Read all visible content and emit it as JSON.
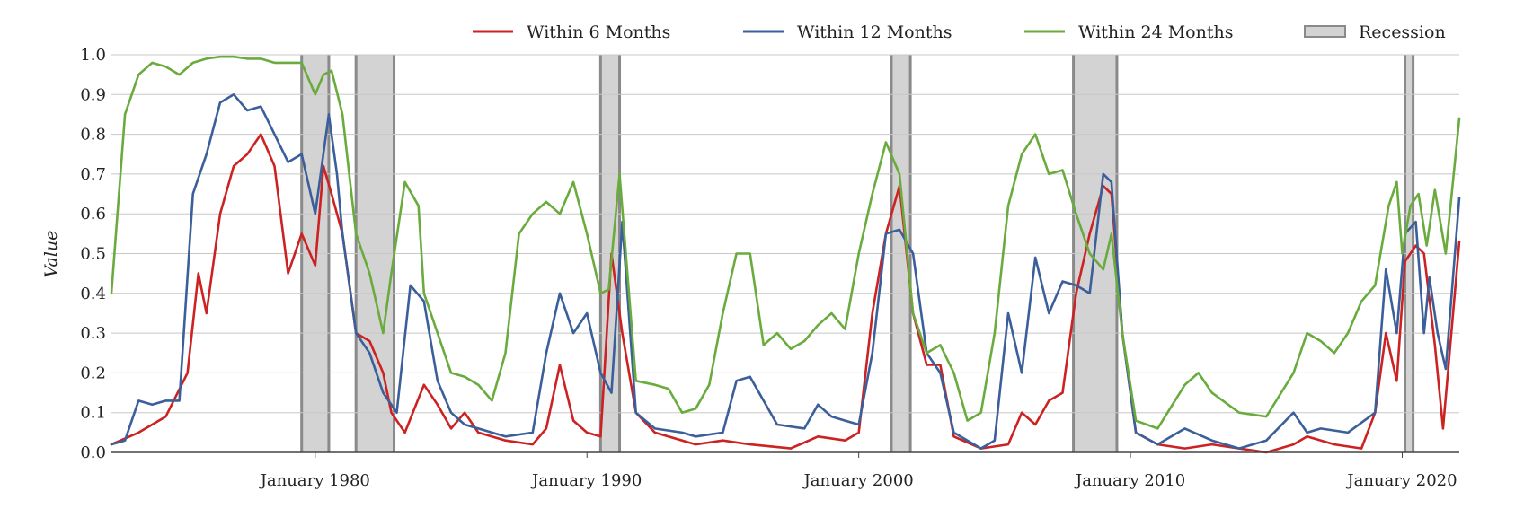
{
  "chart_data": {
    "type": "line",
    "title": "",
    "xlabel": "",
    "ylabel": "Value",
    "xlim": [
      1972.5,
      2022.1
    ],
    "ylim": [
      0,
      1.0
    ],
    "x_ticks": [
      {
        "label": "January 1980",
        "value": 1980.0
      },
      {
        "label": "January 1990",
        "value": 1990.0
      },
      {
        "label": "January 2000",
        "value": 2000.0
      },
      {
        "label": "January 2010",
        "value": 2010.0
      },
      {
        "label": "January 2020",
        "value": 2020.0
      }
    ],
    "y_ticks": [
      "0.0",
      "0.1",
      "0.2",
      "0.3",
      "0.4",
      "0.5",
      "0.6",
      "0.7",
      "0.8",
      "0.9",
      "1.0"
    ],
    "grid": true,
    "legend_position": "top",
    "recessions": [
      {
        "start": 1979.5,
        "end": 1980.5
      },
      {
        "start": 1981.5,
        "end": 1982.9
      },
      {
        "start": 1990.5,
        "end": 1991.2
      },
      {
        "start": 2001.2,
        "end": 2001.9
      },
      {
        "start": 2007.9,
        "end": 2009.5
      },
      {
        "start": 2020.1,
        "end": 2020.4
      }
    ],
    "recession_label": "Recession",
    "recession_color": "#d3d3d3",
    "series": [
      {
        "name": "Within 6 Months",
        "color": "#cc2222",
        "x": [
          1972.5,
          1973.5,
          1974.5,
          1975.3,
          1975.7,
          1976.0,
          1976.5,
          1977.0,
          1977.5,
          1978.0,
          1978.5,
          1979.0,
          1979.5,
          1980.0,
          1980.3,
          1980.6,
          1981.0,
          1981.5,
          1982.0,
          1982.5,
          1982.8,
          1983.3,
          1984.0,
          1984.5,
          1985.0,
          1985.5,
          1986.0,
          1987.0,
          1988.0,
          1988.5,
          1989.0,
          1989.5,
          1990.0,
          1990.5,
          1990.9,
          1991.3,
          1991.8,
          1992.5,
          1994.0,
          1995.0,
          1996.0,
          1997.5,
          1998.5,
          1999.5,
          2000.0,
          2000.5,
          2001.0,
          2001.5,
          2002.0,
          2002.5,
          2003.0,
          2003.5,
          2004.5,
          2005.5,
          2006.0,
          2006.5,
          2007.0,
          2007.5,
          2008.0,
          2008.5,
          2009.0,
          2009.3,
          2009.7,
          2010.2,
          2011.0,
          2012.0,
          2013.0,
          2014.0,
          2015.0,
          2016.0,
          2016.5,
          2017.5,
          2018.5,
          2019.0,
          2019.4,
          2019.8,
          2020.1,
          2020.5,
          2020.8,
          2021.2,
          2021.5,
          2022.1
        ],
        "values": [
          0.02,
          0.05,
          0.09,
          0.2,
          0.45,
          0.35,
          0.6,
          0.72,
          0.75,
          0.8,
          0.72,
          0.45,
          0.55,
          0.47,
          0.72,
          0.65,
          0.55,
          0.3,
          0.28,
          0.2,
          0.1,
          0.05,
          0.17,
          0.12,
          0.06,
          0.1,
          0.05,
          0.03,
          0.02,
          0.06,
          0.22,
          0.08,
          0.05,
          0.04,
          0.5,
          0.3,
          0.1,
          0.05,
          0.02,
          0.03,
          0.02,
          0.01,
          0.04,
          0.03,
          0.05,
          0.35,
          0.55,
          0.67,
          0.35,
          0.22,
          0.22,
          0.04,
          0.01,
          0.02,
          0.1,
          0.07,
          0.13,
          0.15,
          0.4,
          0.55,
          0.67,
          0.65,
          0.3,
          0.05,
          0.02,
          0.01,
          0.02,
          0.01,
          0.0,
          0.02,
          0.04,
          0.02,
          0.01,
          0.1,
          0.3,
          0.18,
          0.48,
          0.52,
          0.5,
          0.27,
          0.06,
          0.53
        ]
      },
      {
        "name": "Within 12 Months",
        "color": "#3a5f9a",
        "x": [
          1972.5,
          1973.0,
          1973.5,
          1974.0,
          1974.5,
          1975.0,
          1975.5,
          1976.0,
          1976.5,
          1977.0,
          1977.5,
          1978.0,
          1978.5,
          1979.0,
          1979.5,
          1980.0,
          1980.5,
          1980.8,
          1981.0,
          1981.5,
          1982.0,
          1982.5,
          1983.0,
          1983.5,
          1984.0,
          1984.5,
          1985.0,
          1985.5,
          1986.0,
          1987.0,
          1988.0,
          1988.5,
          1989.0,
          1989.5,
          1990.0,
          1990.5,
          1990.9,
          1991.3,
          1991.8,
          1992.5,
          1993.5,
          1994.0,
          1995.0,
          1995.5,
          1996.0,
          1997.0,
          1998.0,
          1998.5,
          1999.0,
          1999.5,
          2000.0,
          2000.5,
          2001.0,
          2001.5,
          2002.0,
          2002.5,
          2003.0,
          2003.5,
          2004.5,
          2005.0,
          2005.5,
          2006.0,
          2006.5,
          2007.0,
          2007.5,
          2008.0,
          2008.5,
          2009.0,
          2009.3,
          2009.7,
          2010.2,
          2011.0,
          2012.0,
          2013.0,
          2014.0,
          2015.0,
          2016.0,
          2016.5,
          2017.0,
          2018.0,
          2019.0,
          2019.4,
          2019.8,
          2020.1,
          2020.5,
          2020.8,
          2021.0,
          2021.3,
          2021.6,
          2022.1
        ],
        "values": [
          0.02,
          0.03,
          0.13,
          0.12,
          0.13,
          0.13,
          0.65,
          0.75,
          0.88,
          0.9,
          0.86,
          0.87,
          0.8,
          0.73,
          0.75,
          0.6,
          0.85,
          0.7,
          0.55,
          0.3,
          0.25,
          0.15,
          0.1,
          0.42,
          0.38,
          0.18,
          0.1,
          0.07,
          0.06,
          0.04,
          0.05,
          0.25,
          0.4,
          0.3,
          0.35,
          0.2,
          0.15,
          0.58,
          0.1,
          0.06,
          0.05,
          0.04,
          0.05,
          0.18,
          0.19,
          0.07,
          0.06,
          0.12,
          0.09,
          0.08,
          0.07,
          0.25,
          0.55,
          0.56,
          0.5,
          0.25,
          0.2,
          0.05,
          0.01,
          0.03,
          0.35,
          0.2,
          0.49,
          0.35,
          0.43,
          0.42,
          0.4,
          0.7,
          0.68,
          0.3,
          0.05,
          0.02,
          0.06,
          0.03,
          0.01,
          0.03,
          0.1,
          0.05,
          0.06,
          0.05,
          0.1,
          0.46,
          0.3,
          0.55,
          0.58,
          0.3,
          0.44,
          0.3,
          0.21,
          0.64
        ]
      },
      {
        "name": "Within 24 Months",
        "color": "#6aab3e",
        "x": [
          1972.5,
          1973.0,
          1973.5,
          1974.0,
          1974.5,
          1975.0,
          1975.5,
          1976.0,
          1976.5,
          1977.0,
          1977.5,
          1978.0,
          1978.5,
          1979.0,
          1979.5,
          1980.0,
          1980.3,
          1980.6,
          1981.0,
          1981.5,
          1982.0,
          1982.5,
          1982.8,
          1983.3,
          1983.8,
          1984.0,
          1984.5,
          1985.0,
          1985.5,
          1986.0,
          1986.5,
          1987.0,
          1987.5,
          1988.0,
          1988.5,
          1989.0,
          1989.5,
          1990.0,
          1990.5,
          1990.8,
          1991.2,
          1991.8,
          1992.5,
          1993.0,
          1993.5,
          1994.0,
          1994.5,
          1995.0,
          1995.5,
          1996.0,
          1996.5,
          1997.0,
          1997.5,
          1998.0,
          1998.5,
          1999.0,
          1999.5,
          2000.0,
          2000.5,
          2001.0,
          2001.5,
          2002.0,
          2002.5,
          2003.0,
          2003.5,
          2004.0,
          2004.5,
          2005.0,
          2005.5,
          2006.0,
          2006.5,
          2007.0,
          2007.5,
          2008.0,
          2008.5,
          2009.0,
          2009.3,
          2009.7,
          2010.2,
          2011.0,
          2012.0,
          2012.5,
          2013.0,
          2014.0,
          2015.0,
          2016.0,
          2016.5,
          2017.0,
          2017.5,
          2018.0,
          2018.5,
          2019.0,
          2019.5,
          2019.8,
          2020.0,
          2020.3,
          2020.6,
          2020.9,
          2021.2,
          2021.6,
          2022.1
        ],
        "values": [
          0.4,
          0.85,
          0.95,
          0.98,
          0.97,
          0.95,
          0.98,
          0.99,
          0.995,
          0.995,
          0.99,
          0.99,
          0.98,
          0.98,
          0.98,
          0.9,
          0.95,
          0.96,
          0.85,
          0.55,
          0.45,
          0.3,
          0.45,
          0.68,
          0.62,
          0.4,
          0.3,
          0.2,
          0.19,
          0.17,
          0.13,
          0.25,
          0.55,
          0.6,
          0.63,
          0.6,
          0.68,
          0.55,
          0.4,
          0.41,
          0.7,
          0.18,
          0.17,
          0.16,
          0.1,
          0.11,
          0.17,
          0.35,
          0.5,
          0.5,
          0.27,
          0.3,
          0.26,
          0.28,
          0.32,
          0.35,
          0.31,
          0.5,
          0.65,
          0.78,
          0.7,
          0.35,
          0.25,
          0.27,
          0.2,
          0.08,
          0.1,
          0.3,
          0.62,
          0.75,
          0.8,
          0.7,
          0.71,
          0.6,
          0.5,
          0.46,
          0.55,
          0.3,
          0.08,
          0.06,
          0.17,
          0.2,
          0.15,
          0.1,
          0.09,
          0.2,
          0.3,
          0.28,
          0.25,
          0.3,
          0.38,
          0.42,
          0.62,
          0.68,
          0.5,
          0.62,
          0.65,
          0.52,
          0.66,
          0.5,
          0.84
        ]
      }
    ]
  }
}
